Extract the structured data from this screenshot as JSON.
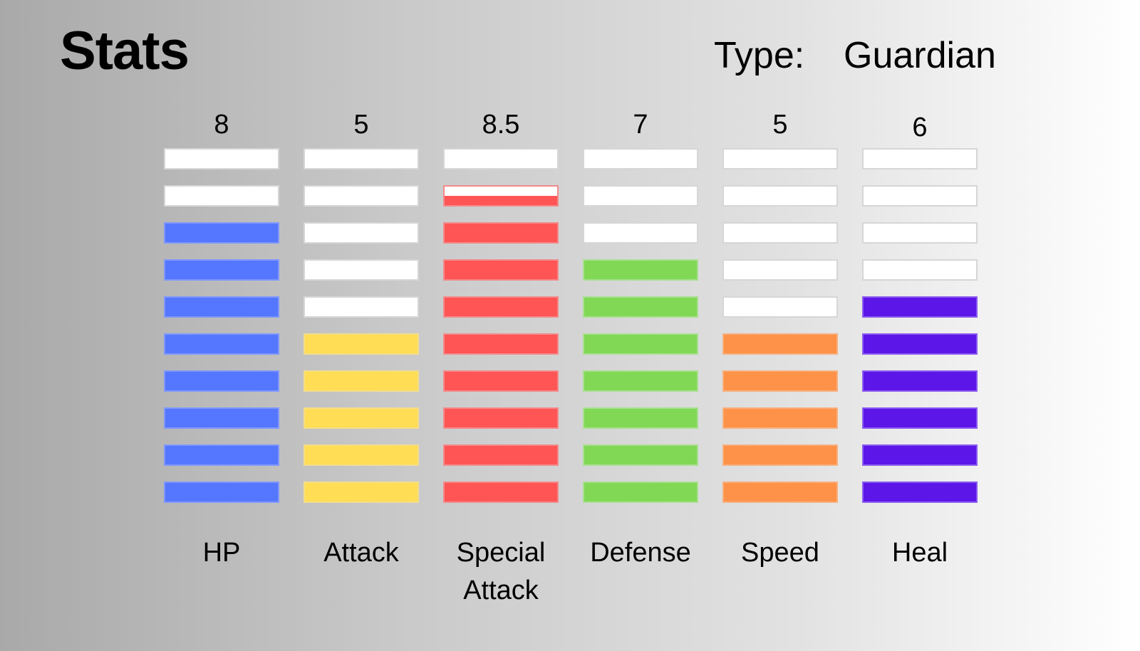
{
  "header": {
    "title": "Stats",
    "type_label": "Type:",
    "type_value": "Guardian"
  },
  "chart_data": {
    "type": "bar",
    "max_value": 10,
    "categories": [
      "HP",
      "Attack",
      "Special Attack",
      "Defense",
      "Speed",
      "Heal"
    ],
    "value_labels": [
      "8",
      "5",
      "8.5",
      "7",
      "5",
      "6"
    ],
    "values": [
      8,
      5,
      8.5,
      7,
      5,
      6
    ],
    "colors": [
      "#5577ff",
      "#ffdd55",
      "#ff5555",
      "#80d855",
      "#ff9249",
      "#5d16e8"
    ],
    "border_colors": [
      "#7f97ff",
      "#f3dd8a",
      "#f48a8a",
      "#a9df8f",
      "#f7b07e",
      "#8a5cf0"
    ],
    "empty_color": "#ffffff"
  }
}
